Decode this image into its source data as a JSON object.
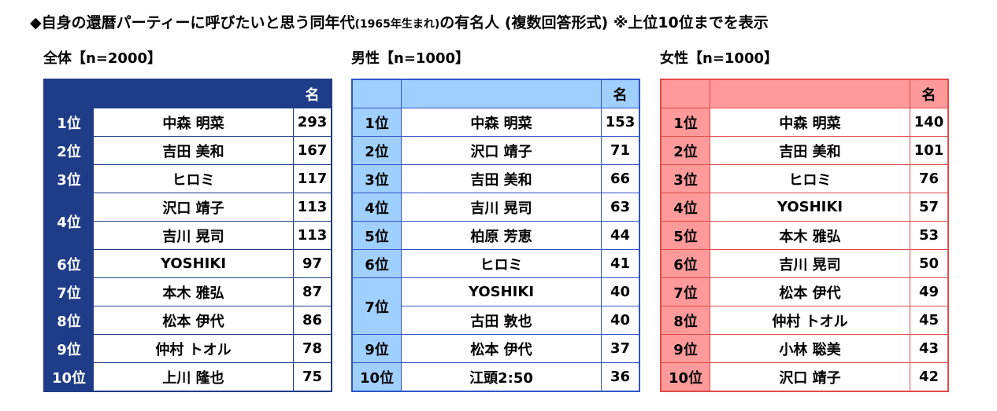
{
  "title": {
    "main": "◆自身の還暦パーティーに呼びたいと思う同年代",
    "sub": "(1965年生まれ)",
    "tail": "の有名人 (複数回答形式) ※上位10位までを表示"
  },
  "count_header": "名",
  "panels": {
    "all": {
      "label": "全体【n=2000】",
      "rows": [
        {
          "rank": "1位",
          "name": "中森 明菜",
          "count": "293"
        },
        {
          "rank": "2位",
          "name": "吉田 美和",
          "count": "167"
        },
        {
          "rank": "3位",
          "name": "ヒロミ",
          "count": "117"
        },
        {
          "rank": "4位",
          "name": "沢口 靖子",
          "count": "113"
        },
        {
          "rank": "",
          "name": "吉川 晃司",
          "count": "113"
        },
        {
          "rank": "6位",
          "name": "YOSHIKI",
          "count": "97"
        },
        {
          "rank": "7位",
          "name": "本木 雅弘",
          "count": "87"
        },
        {
          "rank": "8位",
          "name": "松本 伊代",
          "count": "86"
        },
        {
          "rank": "9位",
          "name": "仲村 トオル",
          "count": "78"
        },
        {
          "rank": "10位",
          "name": "上川 隆也",
          "count": "75"
        }
      ]
    },
    "male": {
      "label": "男性【n=1000】",
      "rows": [
        {
          "rank": "1位",
          "name": "中森 明菜",
          "count": "153"
        },
        {
          "rank": "2位",
          "name": "沢口 靖子",
          "count": "71"
        },
        {
          "rank": "3位",
          "name": "吉田 美和",
          "count": "66"
        },
        {
          "rank": "4位",
          "name": "吉川 晃司",
          "count": "63"
        },
        {
          "rank": "5位",
          "name": "柏原 芳恵",
          "count": "44"
        },
        {
          "rank": "6位",
          "name": "ヒロミ",
          "count": "41"
        },
        {
          "rank": "7位",
          "name": "YOSHIKI",
          "count": "40"
        },
        {
          "rank": "",
          "name": "古田 敦也",
          "count": "40"
        },
        {
          "rank": "9位",
          "name": "松本 伊代",
          "count": "37"
        },
        {
          "rank": "10位",
          "name": "江頭2:50",
          "count": "36"
        }
      ]
    },
    "female": {
      "label": "女性【n=1000】",
      "rows": [
        {
          "rank": "1位",
          "name": "中森 明菜",
          "count": "140"
        },
        {
          "rank": "2位",
          "name": "吉田 美和",
          "count": "101"
        },
        {
          "rank": "3位",
          "name": "ヒロミ",
          "count": "76"
        },
        {
          "rank": "4位",
          "name": "YOSHIKI",
          "count": "57"
        },
        {
          "rank": "5位",
          "name": "本木 雅弘",
          "count": "53"
        },
        {
          "rank": "6位",
          "name": "吉川 晃司",
          "count": "50"
        },
        {
          "rank": "7位",
          "name": "松本 伊代",
          "count": "49"
        },
        {
          "rank": "8位",
          "name": "仲村 トオル",
          "count": "45"
        },
        {
          "rank": "9位",
          "name": "小林 聡美",
          "count": "43"
        },
        {
          "rank": "10位",
          "name": "沢口 靖子",
          "count": "42"
        }
      ]
    }
  }
}
